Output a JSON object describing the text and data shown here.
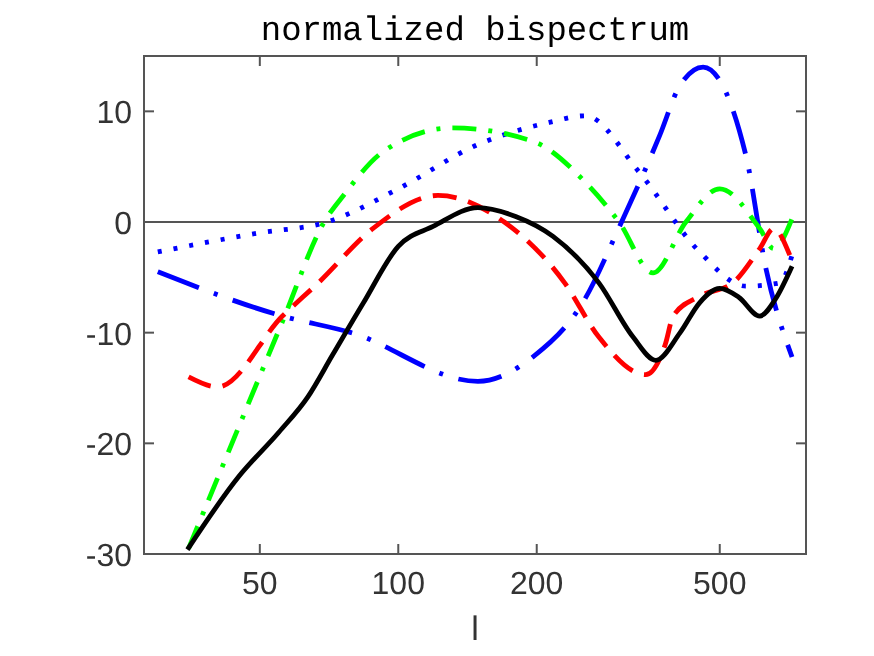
{
  "chart_data": {
    "type": "line",
    "title": "normalized bispectrum",
    "xlabel": "l",
    "log": "x",
    "xlim": [
      28,
      770
    ],
    "ylim": [
      -30,
      15
    ],
    "xticks": [
      50,
      100,
      200,
      500
    ],
    "yticks": [
      -30,
      -20,
      -10,
      0,
      10
    ],
    "grid": false,
    "ref_lines": [
      {
        "axis": "y",
        "value": 0,
        "color": "#555555"
      }
    ],
    "series": [
      {
        "color": "#0000ff",
        "line_style": "dotted",
        "x": [
          30,
          49.5,
          70,
          100,
          149,
          213,
          255,
          334,
          452,
          570,
          676,
          718
        ],
        "values": [
          -2.7,
          -1,
          0,
          3,
          7,
          9,
          9.6,
          4.5,
          -2.7,
          -5.8,
          -5.5,
          -3
        ]
      },
      {
        "color": "#0000ff",
        "line_style": "longdashdot",
        "x": [
          30,
          56,
          79,
          149,
          196,
          255,
          302,
          370,
          408,
          460,
          570,
          630,
          718
        ],
        "values": [
          -4.5,
          -8.5,
          -10,
          -14.4,
          -12.2,
          -6.9,
          -0.5,
          7.8,
          12.2,
          14,
          6,
          -4.2,
          -12.2
        ]
      },
      {
        "color": "#00ff00",
        "line_style": "dashdot",
        "x": [
          35,
          56,
          69,
          76,
          93,
          131,
          196,
          255,
          302,
          358,
          422,
          500,
          611,
          655,
          718
        ],
        "values": [
          -29.5,
          -9,
          0,
          2.4,
          6.4,
          8.5,
          7.3,
          3.6,
          0,
          -4.6,
          0,
          3,
          -0.6,
          -2.4,
          0.3
        ]
      },
      {
        "color": "#ff0000",
        "line_style": "dashed",
        "x": [
          35,
          40.5,
          56,
          67,
          88,
          122,
          170,
          230,
          273,
          345,
          381,
          396,
          452,
          534,
          611,
          655,
          710
        ],
        "values": [
          -14,
          -14.9,
          -8.5,
          -5.5,
          -0.6,
          2.4,
          0,
          -5.5,
          -10.4,
          -13.8,
          -11,
          -8.5,
          -6.7,
          -5.5,
          -2.4,
          -0.6,
          -3
        ]
      },
      {
        "color": "#000000",
        "line_style": "solid",
        "x": [
          34.8,
          45,
          55,
          63.6,
          72,
          84,
          100,
          119,
          149,
          180,
          217,
          273,
          324,
          363,
          410,
          452,
          500,
          550,
          611,
          660,
          718
        ],
        "values": [
          -29.6,
          -23,
          -19,
          -15.8,
          -12,
          -7.3,
          -2.2,
          -0.4,
          1.3,
          0.5,
          -1.3,
          -5.5,
          -10.4,
          -12.5,
          -10,
          -7.3,
          -6,
          -6.8,
          -8.5,
          -7,
          -4
        ]
      }
    ]
  }
}
